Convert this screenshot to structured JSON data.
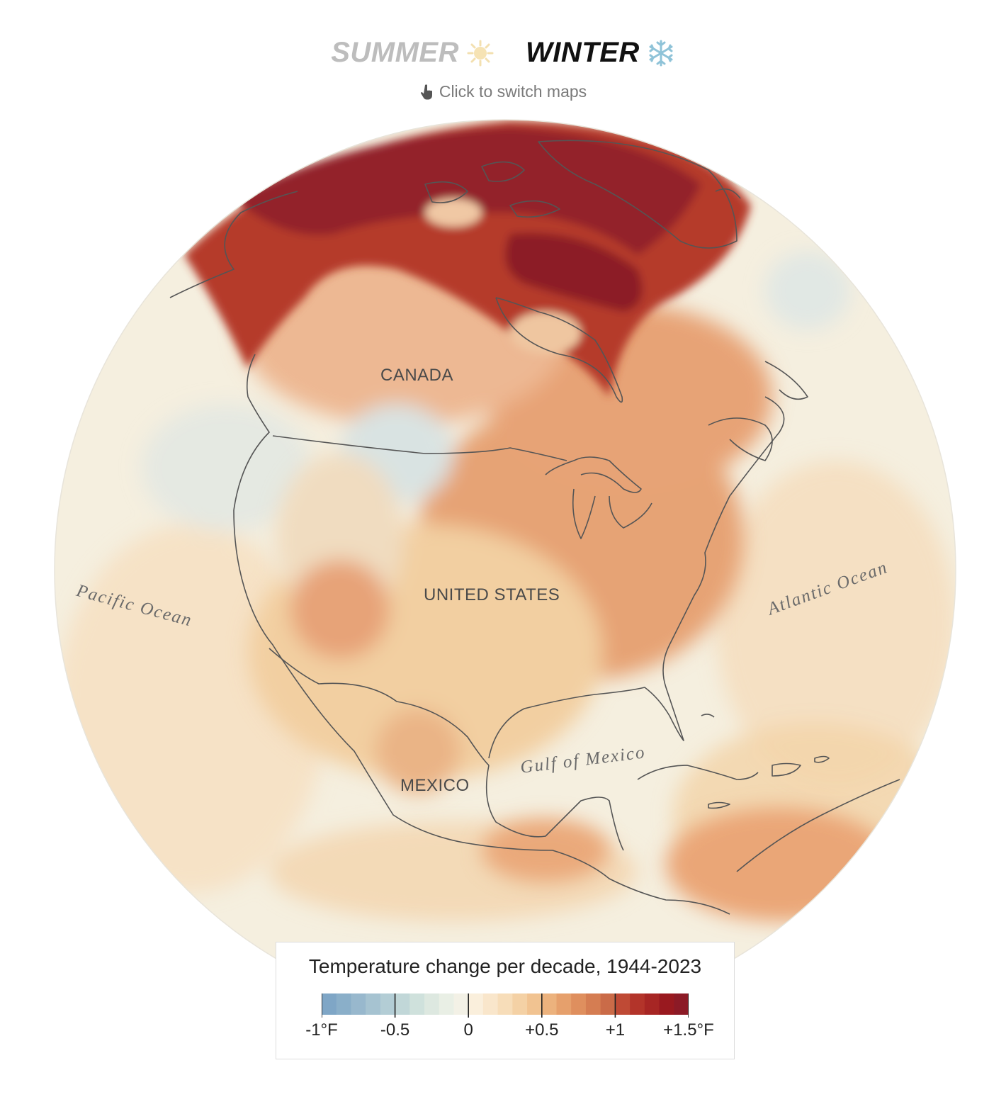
{
  "toggle": {
    "summer": {
      "label": "SUMMER",
      "state": "inactive",
      "icon": "sun-icon"
    },
    "winter": {
      "label": "WINTER",
      "state": "active",
      "icon": "snowflake-icon"
    }
  },
  "hint": {
    "text": "Click to switch maps",
    "icon": "pointer-hand-icon"
  },
  "map": {
    "labels": {
      "canada": "CANADA",
      "united_states": "UNITED STATES",
      "mexico": "MEXICO",
      "pacific": "Pacific Ocean",
      "atlantic": "Atlantic Ocean",
      "gulf": "Gulf of Mexico"
    }
  },
  "legend": {
    "title": "Temperature change per decade, 1944-2023",
    "unit": "°F",
    "tick_labels": [
      "-1°F",
      "-0.5",
      "0",
      "+0.5",
      "+1",
      "+1.5°F"
    ],
    "tick_values": [
      -1,
      -0.5,
      0,
      0.5,
      1,
      1.5
    ],
    "range": [
      -1,
      1.5
    ],
    "bins": [
      "#7fa6c6",
      "#8aafc9",
      "#98b8cd",
      "#a6c3d1",
      "#b3cdd5",
      "#c1d7d8",
      "#cfe1dc",
      "#dde8e0",
      "#e9efe5",
      "#f3f1e6",
      "#faefdc",
      "#f9e6cb",
      "#f7ddb9",
      "#f4d1a5",
      "#f1c391",
      "#ecb27d",
      "#e6a06c",
      "#df8f5e",
      "#d57d52",
      "#ca6b48",
      "#bf4a35",
      "#b3342a",
      "#a72624",
      "#99191f",
      "#8c1a26"
    ]
  },
  "colors": {
    "ocean_neutral": "#f5efdf",
    "warm_light": "#f4d6ae",
    "warm_mid": "#e39a6c",
    "warm_strong": "#a82828",
    "warm_extreme": "#8c1a26",
    "cool": "#c9dde0",
    "coastline": "#555555"
  }
}
